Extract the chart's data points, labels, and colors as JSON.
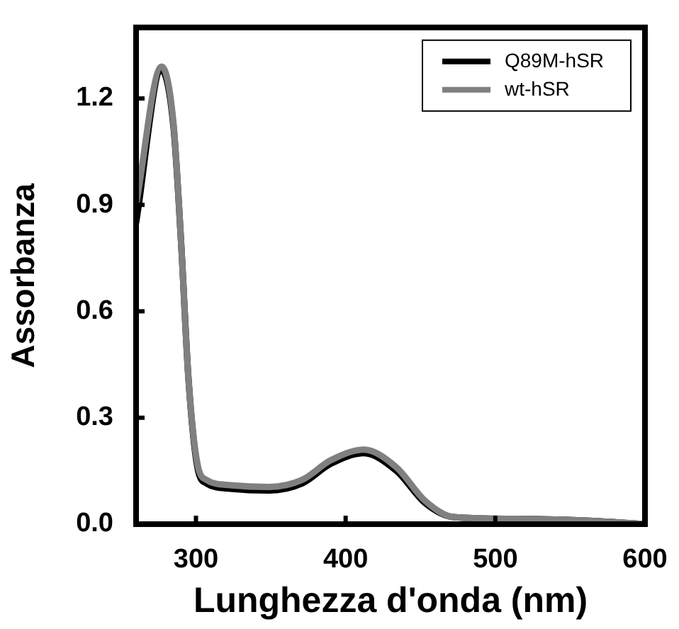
{
  "chart_data": {
    "type": "line",
    "xlabel": "Lunghezza d'onda (nm)",
    "ylabel": "Assorbanza",
    "xlim": [
      260,
      600
    ],
    "xticks": [
      300,
      400,
      500,
      600
    ],
    "ylim": [
      0,
      1.4
    ],
    "yticks": [
      {
        "value": 0,
        "label": "0.0"
      },
      0.3,
      0.6,
      0.9,
      1.2
    ],
    "legend": "top right",
    "grid": false,
    "marker": "none",
    "line_style": "solid",
    "series": [
      {
        "name": "Q89M-hSR",
        "color": "#000000",
        "x": [
          260,
          277,
          285,
          290,
          295,
          301,
          307,
          323,
          349,
          371,
          390,
          412,
          434,
          453,
          472,
          514,
          561,
          600
        ],
        "values": [
          0.85,
          1.28,
          1.12,
          0.8,
          0.41,
          0.16,
          0.115,
          0.1,
          0.095,
          0.115,
          0.17,
          0.2,
          0.15,
          0.06,
          0.02,
          0.015,
          0.01,
          0
        ]
      },
      {
        "name": "wt-hSR",
        "color": "#808080",
        "x": [
          260,
          277,
          285,
          290,
          295,
          301,
          307,
          323,
          349,
          371,
          390,
          412,
          434,
          453,
          472,
          514,
          561,
          600
        ],
        "values": [
          0.9,
          1.29,
          1.13,
          0.8,
          0.41,
          0.17,
          0.125,
          0.11,
          0.105,
          0.125,
          0.18,
          0.21,
          0.16,
          0.066,
          0.02,
          0.015,
          0.01,
          0
        ]
      }
    ]
  }
}
